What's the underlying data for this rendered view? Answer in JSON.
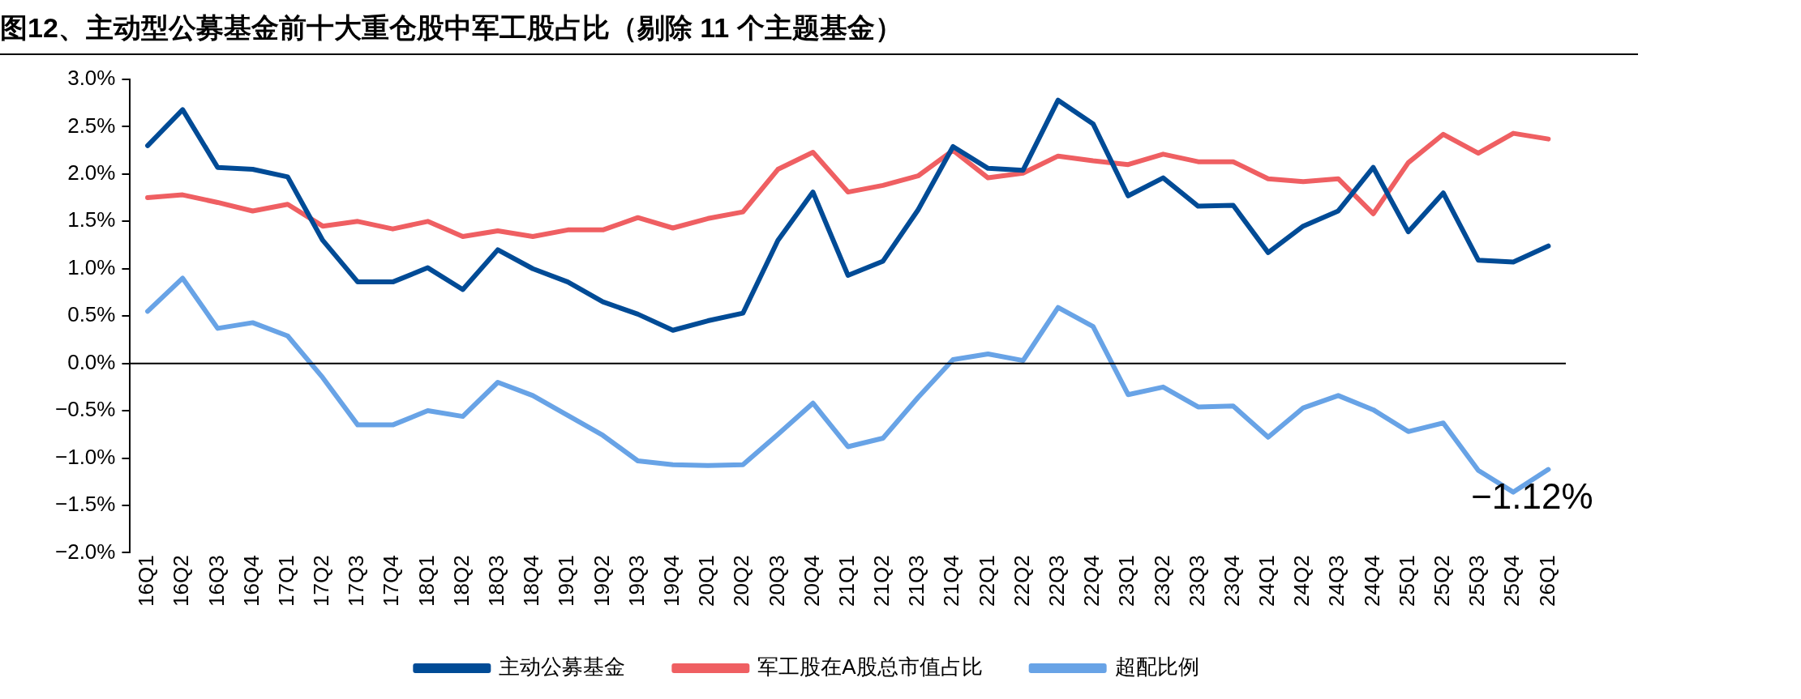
{
  "chart_data": {
    "type": "line",
    "title": "图12、主动型公募基金前十大重仓股中军工股占比（剔除 11 个主题基金）",
    "categories": [
      "16Q1",
      "16Q2",
      "16Q3",
      "16Q4",
      "17Q1",
      "17Q2",
      "17Q3",
      "17Q4",
      "18Q1",
      "18Q2",
      "18Q3",
      "18Q4",
      "19Q1",
      "19Q2",
      "19Q3",
      "19Q4",
      "20Q1",
      "20Q2",
      "20Q3",
      "20Q4",
      "21Q1",
      "21Q2",
      "21Q3",
      "21Q4",
      "22Q1",
      "22Q2",
      "22Q3",
      "22Q4",
      "23Q1",
      "23Q2",
      "23Q3",
      "23Q4",
      "24Q1",
      "24Q2",
      "24Q3",
      "24Q4",
      "25Q1",
      "25Q2",
      "25Q3",
      "25Q4",
      "26Q1"
    ],
    "series": [
      {
        "name": "主动公募基金",
        "color": "#004b96",
        "values": [
          2.3,
          2.68,
          2.07,
          2.05,
          1.97,
          1.3,
          0.86,
          0.86,
          1.01,
          0.78,
          1.2,
          1.0,
          0.86,
          0.65,
          0.52,
          0.35,
          0.45,
          0.53,
          1.3,
          1.81,
          0.93,
          1.08,
          1.62,
          2.29,
          2.06,
          2.04,
          2.78,
          2.53,
          1.77,
          1.96,
          1.66,
          1.67,
          1.17,
          1.45,
          1.61,
          2.07,
          1.39,
          1.8,
          1.09,
          1.07,
          1.24
        ]
      },
      {
        "name": "军工股在A股总市值占比",
        "color": "#ef5f62",
        "values": [
          1.75,
          1.78,
          1.7,
          1.61,
          1.68,
          1.45,
          1.5,
          1.42,
          1.5,
          1.34,
          1.4,
          1.34,
          1.41,
          1.41,
          1.54,
          1.43,
          1.53,
          1.6,
          2.05,
          2.23,
          1.81,
          1.88,
          1.98,
          2.25,
          1.96,
          2.01,
          2.19,
          2.14,
          2.1,
          2.21,
          2.13,
          2.13,
          1.95,
          1.92,
          1.95,
          1.58,
          2.12,
          2.42,
          2.22,
          2.43,
          2.37
        ]
      },
      {
        "name": "超配比例",
        "color": "#68a3e6",
        "values": [
          0.55,
          0.9,
          0.37,
          0.43,
          0.29,
          -0.15,
          -0.65,
          -0.65,
          -0.5,
          -0.56,
          -0.2,
          -0.34,
          -0.55,
          -0.76,
          -1.03,
          -1.07,
          -1.08,
          -1.07,
          -0.75,
          -0.42,
          -0.88,
          -0.79,
          -0.36,
          0.04,
          0.1,
          0.03,
          0.59,
          0.39,
          -0.33,
          -0.25,
          -0.46,
          -0.45,
          -0.78,
          -0.47,
          -0.34,
          -0.49,
          -0.72,
          -0.63,
          -1.13,
          -1.36,
          -1.12
        ]
      }
    ],
    "ylim": [
      -2,
      3
    ],
    "yticks": [
      {
        "value": 3,
        "label": "3.0%"
      },
      {
        "value": 2.5,
        "label": "2.5%"
      },
      {
        "value": 2,
        "label": "2.0%"
      },
      {
        "value": 1.5,
        "label": "1.5%"
      },
      {
        "value": 1,
        "label": "1.0%"
      },
      {
        "value": 0.5,
        "label": "0.5%"
      },
      {
        "value": 0,
        "label": "0.0%"
      },
      {
        "value": -0.5,
        "label": "−0.5%"
      },
      {
        "value": -1,
        "label": "−1.0%"
      },
      {
        "value": -1.5,
        "label": "−1.5%"
      },
      {
        "value": -2,
        "label": "−2.0%"
      }
    ],
    "annotations": [
      {
        "text": "−1.12%",
        "x": "26Q1",
        "y": -1.12
      }
    ],
    "ref_lines": [
      {
        "axis": "y",
        "value": 0,
        "color": "#000000"
      }
    ],
    "grid": false,
    "legend": "bottom",
    "marker": "none",
    "line_style": "solid"
  }
}
